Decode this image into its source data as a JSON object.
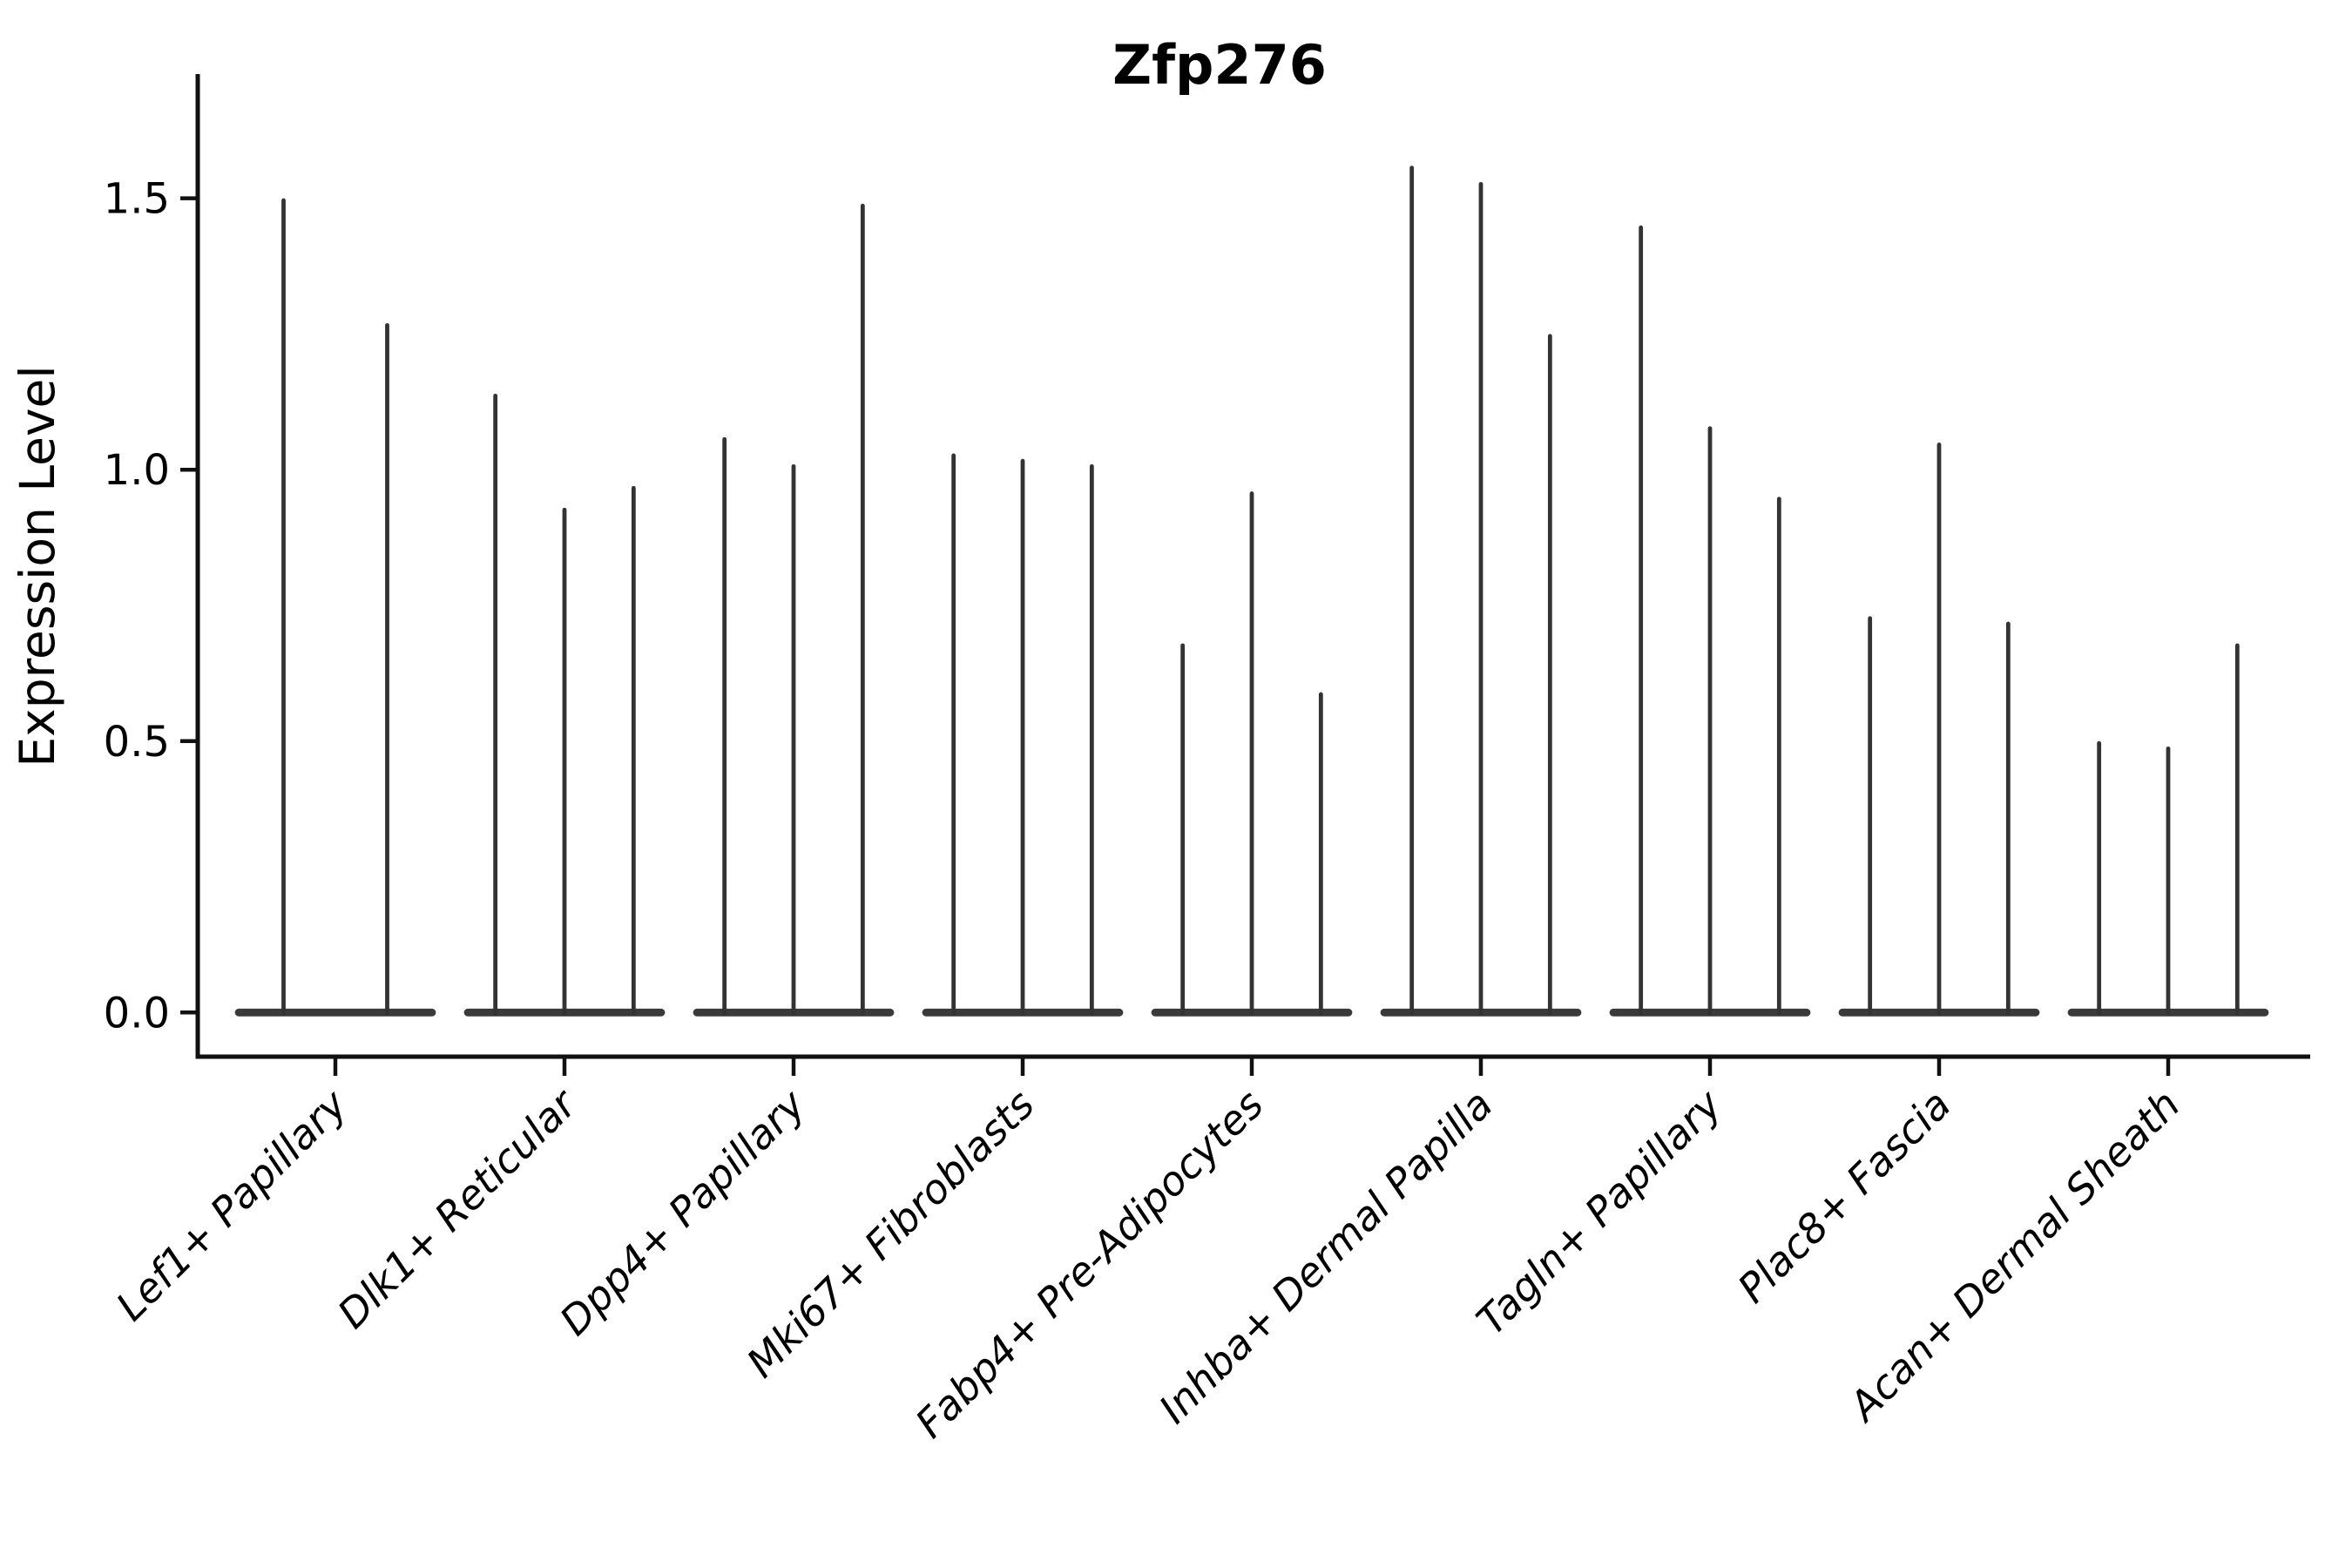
{
  "title": "Zfp276",
  "axes": {
    "ylabel": "Expression Level",
    "xlabel": ""
  },
  "colors": {
    "background": "#ffffff",
    "axis": "#111111",
    "violin": "#333333",
    "violin_base": "#3a3a3a",
    "text": "#000000"
  },
  "chart_data": {
    "type": "violin",
    "title": "Zfp276",
    "xlabel": "",
    "ylabel": "Expression Level",
    "grid": false,
    "legend_position": "none",
    "ylim": [
      -0.08,
      1.73
    ],
    "yticks": [
      "0.0",
      "0.5",
      "1.0",
      "1.5"
    ],
    "ytick_values": [
      0.0,
      0.5,
      1.0,
      1.5
    ],
    "baseline_value": 0.0,
    "categories": [
      "Lef1+ Papillary",
      "Dlk1+ Reticular",
      "Dpp4+ Papillary",
      "Mki67+ Fibroblasts",
      "Fabp4+ Pre-Adipocytes",
      "Inhba+ Dermal Papilla",
      "Tagln+ Papillary",
      "Plac8+ Fascia",
      "Acan+ Dermal Sheath"
    ],
    "violins": [
      {
        "category": "Lef1+ Papillary",
        "maxima": [
          1.5,
          1.27
        ]
      },
      {
        "category": "Dlk1+ Reticular",
        "maxima": [
          1.14,
          0.93,
          0.97
        ]
      },
      {
        "category": "Dpp4+ Papillary",
        "maxima": [
          1.06,
          1.01,
          1.49
        ]
      },
      {
        "category": "Mki67+ Fibroblasts",
        "maxima": [
          1.03,
          1.02,
          1.01
        ]
      },
      {
        "category": "Fabp4+ Pre-Adipocytes",
        "maxima": [
          0.68,
          0.96,
          0.59
        ]
      },
      {
        "category": "Inhba+ Dermal Papilla",
        "maxima": [
          1.56,
          1.53,
          1.25
        ]
      },
      {
        "category": "Tagln+ Papillary",
        "maxima": [
          1.45,
          1.08,
          0.95
        ]
      },
      {
        "category": "Plac8+ Fascia",
        "maxima": [
          0.73,
          1.05,
          0.72
        ]
      },
      {
        "category": "Acan+ Dermal Sheath",
        "maxima": [
          0.5,
          0.49,
          0.68
        ]
      }
    ],
    "violin_shape_note": "each violin is a thin vertical spike from 0 up to its maximum with a wide flat base at expression 0"
  }
}
